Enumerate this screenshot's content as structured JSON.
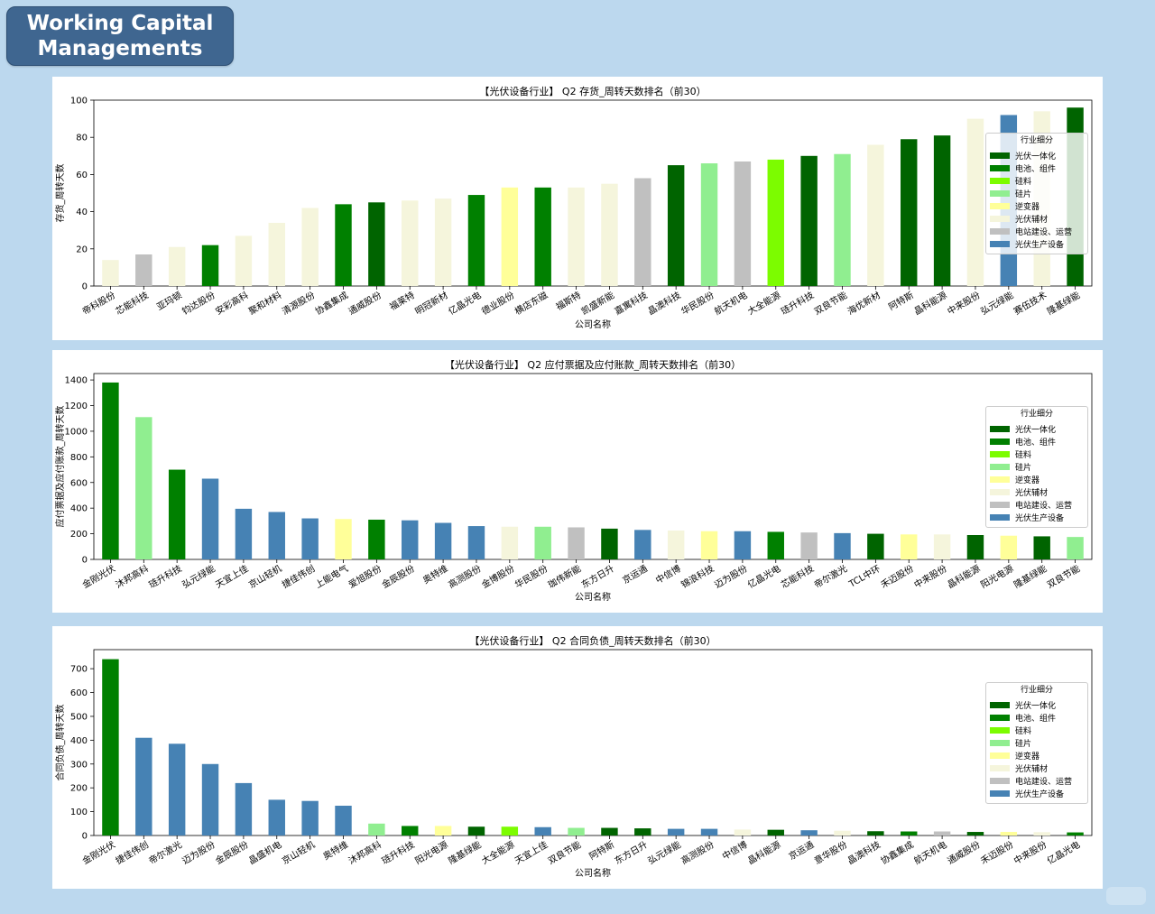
{
  "header": {
    "title_line1": "Working Capital",
    "title_line2": "Managements"
  },
  "legend_title": "行业细分",
  "categories": [
    {
      "name": "光伏一体化",
      "color": "#006400"
    },
    {
      "name": "电池、组件",
      "color": "#008000"
    },
    {
      "name": "硅料",
      "color": "#7cfc00"
    },
    {
      "name": "硅片",
      "color": "#90ee90"
    },
    {
      "name": "逆变器",
      "color": "#ffff99"
    },
    {
      "name": "光伏辅材",
      "color": "#f5f5dc"
    },
    {
      "name": "电站建设、运营",
      "color": "#c0c0c0"
    },
    {
      "name": "光伏生产设备",
      "color": "#4682b4"
    }
  ],
  "chart_data": [
    {
      "type": "bar",
      "title": "【光伏设备行业】 Q2 存货_周转天数排名（前30）",
      "xlabel": "公司名称",
      "ylabel": "存货_周转天数",
      "ylim": [
        0,
        100
      ],
      "yticks": [
        0,
        20,
        40,
        60,
        80,
        100
      ],
      "categories": [
        "帝科股份",
        "芯能科技",
        "亚玛顿",
        "钧达股份",
        "安彩高科",
        "聚和材料",
        "清源股份",
        "协鑫集成",
        "通威股份",
        "福莱特",
        "明冠新材",
        "亿晶光电",
        "德业股份",
        "横店东磁",
        "福斯特",
        "凯盛新能",
        "嘉寓科技",
        "晶澳科技",
        "华民股份",
        "航天机电",
        "大全能源",
        "琏升科技",
        "双良节能",
        "海优新材",
        "阿特斯",
        "晶科能源",
        "中来股份",
        "弘元绿能",
        "赛伍技术",
        "隆基绿能"
      ],
      "values": [
        14,
        17,
        21,
        22,
        27,
        34,
        42,
        44,
        45,
        46,
        47,
        49,
        53,
        53,
        53,
        55,
        58,
        65,
        66,
        67,
        68,
        70,
        71,
        76,
        79,
        81,
        90,
        92,
        94,
        96
      ],
      "segments": [
        5,
        6,
        5,
        1,
        5,
        5,
        5,
        1,
        0,
        5,
        5,
        1,
        4,
        1,
        5,
        5,
        6,
        0,
        3,
        6,
        2,
        0,
        3,
        5,
        0,
        0,
        5,
        7,
        5,
        0
      ]
    },
    {
      "type": "bar",
      "title": "【光伏设备行业】 Q2 应付票据及应付账款_周转天数排名（前30）",
      "xlabel": "公司名称",
      "ylabel": "应付票据及应付账款_周转天数",
      "ylim": [
        0,
        1450
      ],
      "yticks": [
        0,
        200,
        400,
        600,
        800,
        1000,
        1200,
        1400
      ],
      "categories": [
        "金刚光伏",
        "沐邦高科",
        "琏升科技",
        "弘元绿能",
        "天宜上佳",
        "京山轻机",
        "捷佳伟创",
        "上能电气",
        "爱旭股份",
        "金辰股份",
        "奥特维",
        "高测股份",
        "金博股份",
        "华民股份",
        "珈伟新能",
        "东方日升",
        "京运通",
        "中信博",
        "锦浪科技",
        "迈为股份",
        "亿晶光电",
        "芯能科技",
        "帝尔激光",
        "TCL中环",
        "禾迈股份",
        "中来股份",
        "晶科能源",
        "阳光电源",
        "隆基绿能",
        "双良节能"
      ],
      "values": [
        1380,
        1110,
        700,
        630,
        395,
        370,
        320,
        315,
        310,
        305,
        285,
        260,
        255,
        255,
        250,
        240,
        230,
        225,
        220,
        220,
        215,
        210,
        205,
        200,
        195,
        195,
        190,
        185,
        180,
        175
      ],
      "segments": [
        1,
        3,
        1,
        7,
        7,
        7,
        7,
        4,
        1,
        7,
        7,
        7,
        5,
        3,
        6,
        0,
        7,
        5,
        4,
        7,
        1,
        6,
        7,
        0,
        4,
        5,
        0,
        4,
        0,
        3
      ]
    },
    {
      "type": "bar",
      "title": "【光伏设备行业】 Q2 合同负债_周转天数排名（前30）",
      "xlabel": "公司名称",
      "ylabel": "合同负债_周转天数",
      "ylim": [
        0,
        780
      ],
      "yticks": [
        0,
        100,
        200,
        300,
        400,
        500,
        600,
        700
      ],
      "categories": [
        "金刚光伏",
        "捷佳伟创",
        "帝尔激光",
        "迈为股份",
        "金辰股份",
        "晶盛机电",
        "京山轻机",
        "奥特维",
        "沐邦高科",
        "琏升科技",
        "阳光电源",
        "隆基绿能",
        "大全能源",
        "天宜上佳",
        "双良节能",
        "阿特斯",
        "东方日升",
        "弘元绿能",
        "高测股份",
        "中信博",
        "晶科能源",
        "京运通",
        "意华股份",
        "晶澳科技",
        "协鑫集成",
        "航天机电",
        "通威股份",
        "禾迈股份",
        "中来股份",
        "亿晶光电"
      ],
      "values": [
        740,
        410,
        385,
        300,
        220,
        150,
        145,
        125,
        50,
        40,
        40,
        37,
        37,
        35,
        32,
        32,
        30,
        28,
        28,
        25,
        24,
        22,
        20,
        18,
        17,
        17,
        15,
        15,
        14,
        13
      ],
      "segments": [
        1,
        7,
        7,
        7,
        7,
        7,
        7,
        7,
        3,
        1,
        4,
        0,
        2,
        7,
        3,
        0,
        0,
        7,
        7,
        5,
        0,
        7,
        5,
        0,
        1,
        6,
        0,
        4,
        5,
        1
      ]
    }
  ]
}
